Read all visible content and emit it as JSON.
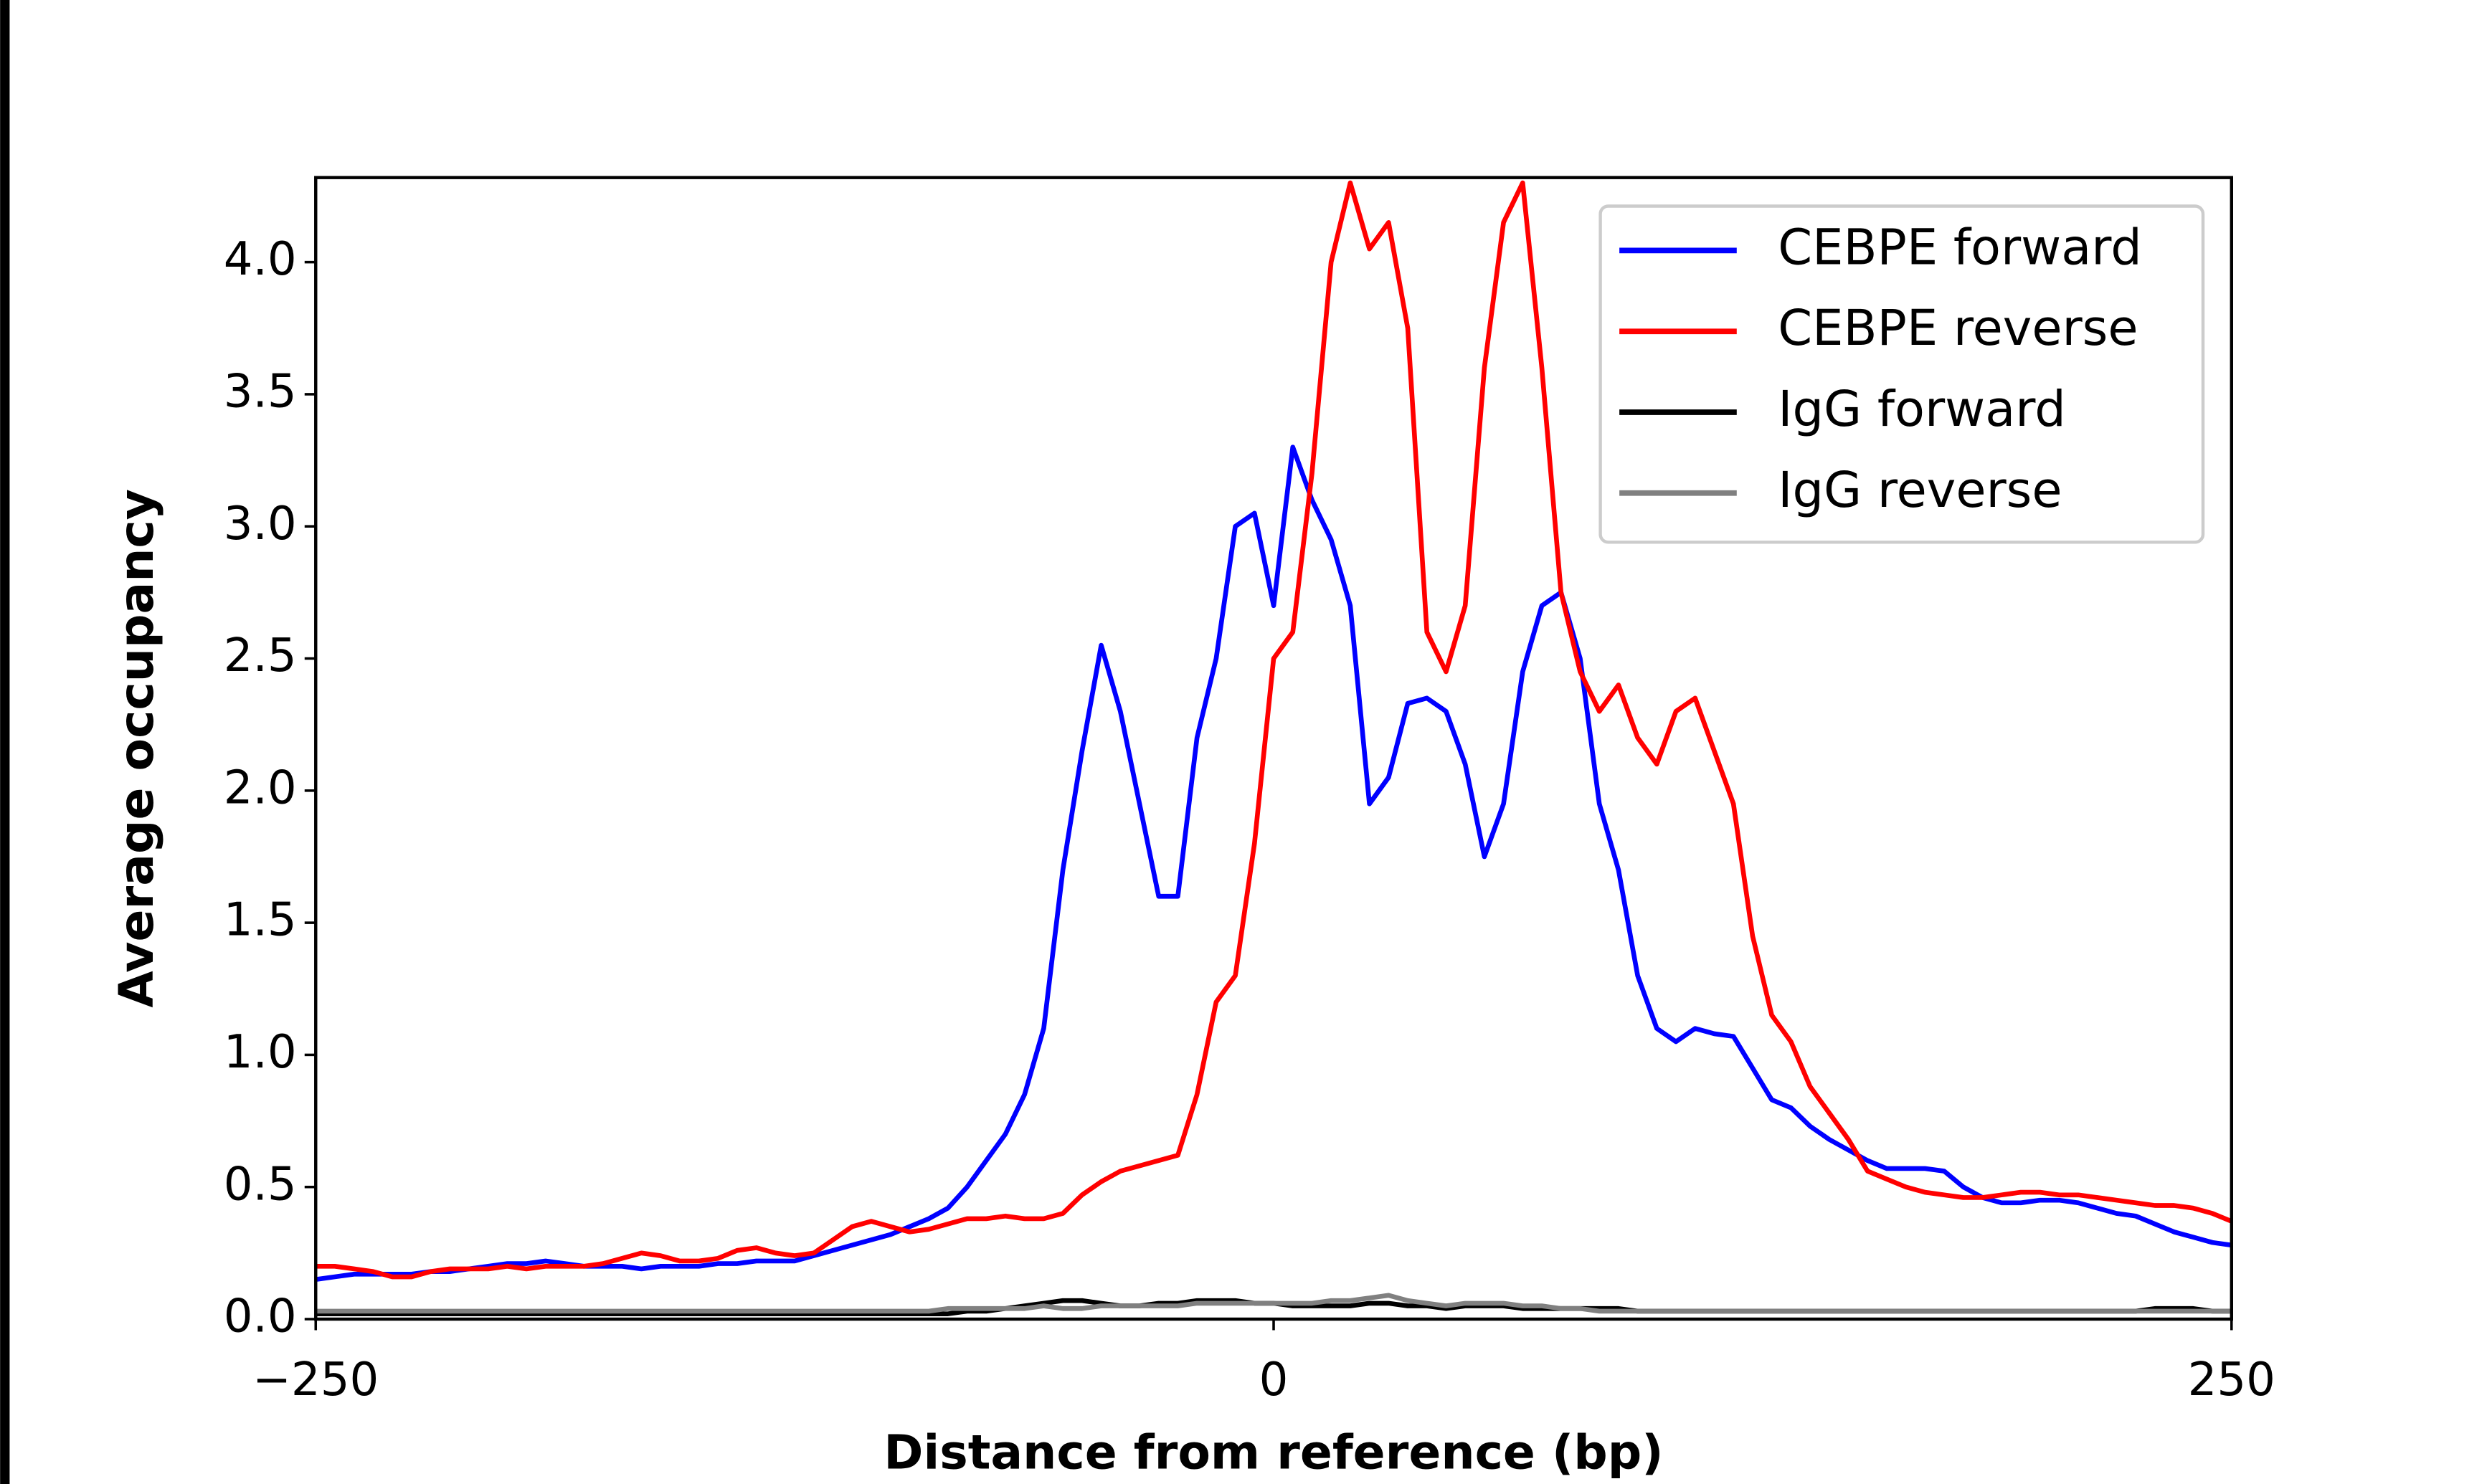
{
  "chart_data": {
    "type": "line",
    "x_label": "Distance from reference (bp)",
    "y_label": "Average occupancy",
    "xlim": [
      -250,
      250
    ],
    "ylim": [
      0,
      4.32
    ],
    "xticks": [
      {
        "value": -250,
        "label": "−250"
      },
      0,
      250
    ],
    "yticks": [
      {
        "value": 0,
        "label": "0.0"
      },
      0.5,
      {
        "value": 1,
        "label": "1.0"
      },
      1.5,
      {
        "value": 2,
        "label": "2.0"
      },
      2.5,
      {
        "value": 3,
        "label": "3.0"
      },
      3.5,
      {
        "value": 4,
        "label": "4.0"
      }
    ],
    "legend": "upper right",
    "x": [
      -250,
      -245,
      -240,
      -235,
      -230,
      -225,
      -220,
      -215,
      -210,
      -205,
      -200,
      -195,
      -190,
      -185,
      -180,
      -175,
      -170,
      -165,
      -160,
      -155,
      -150,
      -145,
      -140,
      -135,
      -130,
      -125,
      -120,
      -115,
      -110,
      -105,
      -100,
      -95,
      -90,
      -85,
      -80,
      -75,
      -70,
      -65,
      -60,
      -55,
      -50,
      -45,
      -40,
      -35,
      -30,
      -25,
      -20,
      -15,
      -10,
      -5,
      0,
      5,
      10,
      15,
      20,
      25,
      30,
      35,
      40,
      45,
      50,
      55,
      60,
      65,
      70,
      75,
      80,
      85,
      90,
      95,
      100,
      105,
      110,
      115,
      120,
      125,
      130,
      135,
      140,
      145,
      150,
      155,
      160,
      165,
      170,
      175,
      180,
      185,
      190,
      195,
      200,
      205,
      210,
      215,
      220,
      225,
      230,
      235,
      240,
      245,
      250
    ],
    "series": [
      {
        "name": "CEBPE forward",
        "color": "#0000ff",
        "values": [
          0.15,
          0.16,
          0.17,
          0.17,
          0.17,
          0.17,
          0.18,
          0.18,
          0.19,
          0.2,
          0.21,
          0.21,
          0.22,
          0.21,
          0.2,
          0.2,
          0.2,
          0.19,
          0.2,
          0.2,
          0.2,
          0.21,
          0.21,
          0.22,
          0.22,
          0.22,
          0.24,
          0.26,
          0.28,
          0.3,
          0.32,
          0.35,
          0.38,
          0.42,
          0.5,
          0.6,
          0.7,
          0.85,
          1.1,
          1.7,
          2.15,
          2.55,
          2.3,
          1.95,
          1.6,
          1.6,
          2.2,
          2.5,
          3.0,
          3.05,
          2.7,
          3.3,
          3.1,
          2.95,
          2.7,
          1.95,
          2.05,
          2.33,
          2.35,
          2.3,
          2.1,
          1.75,
          1.95,
          2.45,
          2.7,
          2.75,
          2.5,
          1.95,
          1.7,
          1.3,
          1.1,
          1.05,
          1.1,
          1.08,
          1.07,
          0.95,
          0.83,
          0.8,
          0.73,
          0.68,
          0.64,
          0.6,
          0.57,
          0.57,
          0.57,
          0.56,
          0.5,
          0.46,
          0.44,
          0.44,
          0.45,
          0.45,
          0.44,
          0.42,
          0.4,
          0.39,
          0.36,
          0.33,
          0.31,
          0.29,
          0.28
        ]
      },
      {
        "name": "CEBPE reverse",
        "color": "#ff0000",
        "values": [
          0.2,
          0.2,
          0.19,
          0.18,
          0.16,
          0.16,
          0.18,
          0.19,
          0.19,
          0.19,
          0.2,
          0.19,
          0.2,
          0.2,
          0.2,
          0.21,
          0.23,
          0.25,
          0.24,
          0.22,
          0.22,
          0.23,
          0.26,
          0.27,
          0.25,
          0.24,
          0.25,
          0.3,
          0.35,
          0.37,
          0.35,
          0.33,
          0.34,
          0.36,
          0.38,
          0.38,
          0.39,
          0.38,
          0.38,
          0.4,
          0.47,
          0.52,
          0.56,
          0.58,
          0.6,
          0.62,
          0.85,
          1.2,
          1.3,
          1.8,
          2.5,
          2.6,
          3.2,
          4.0,
          4.3,
          4.05,
          4.15,
          3.75,
          2.6,
          2.45,
          2.7,
          3.6,
          4.15,
          4.3,
          3.6,
          2.75,
          2.45,
          2.3,
          2.4,
          2.2,
          2.1,
          2.3,
          2.35,
          2.15,
          1.95,
          1.45,
          1.15,
          1.05,
          0.88,
          0.78,
          0.68,
          0.56,
          0.53,
          0.5,
          0.48,
          0.47,
          0.46,
          0.46,
          0.47,
          0.48,
          0.48,
          0.47,
          0.47,
          0.46,
          0.45,
          0.44,
          0.43,
          0.43,
          0.42,
          0.4,
          0.37
        ]
      },
      {
        "name": "IgG forward",
        "color": "#000000",
        "values": [
          0.02,
          0.02,
          0.02,
          0.02,
          0.02,
          0.02,
          0.02,
          0.02,
          0.02,
          0.02,
          0.02,
          0.02,
          0.02,
          0.02,
          0.02,
          0.02,
          0.02,
          0.02,
          0.02,
          0.02,
          0.02,
          0.02,
          0.02,
          0.02,
          0.02,
          0.02,
          0.02,
          0.02,
          0.02,
          0.02,
          0.02,
          0.02,
          0.02,
          0.02,
          0.03,
          0.03,
          0.04,
          0.05,
          0.06,
          0.07,
          0.07,
          0.06,
          0.05,
          0.05,
          0.06,
          0.06,
          0.07,
          0.07,
          0.07,
          0.06,
          0.06,
          0.05,
          0.05,
          0.05,
          0.05,
          0.06,
          0.06,
          0.05,
          0.05,
          0.04,
          0.05,
          0.05,
          0.05,
          0.04,
          0.04,
          0.04,
          0.04,
          0.04,
          0.04,
          0.03,
          0.03,
          0.03,
          0.03,
          0.03,
          0.03,
          0.03,
          0.03,
          0.03,
          0.03,
          0.03,
          0.03,
          0.03,
          0.03,
          0.03,
          0.03,
          0.03,
          0.03,
          0.03,
          0.03,
          0.03,
          0.03,
          0.03,
          0.03,
          0.03,
          0.03,
          0.03,
          0.04,
          0.04,
          0.04,
          0.03,
          0.03
        ]
      },
      {
        "name": "IgG reverse",
        "color": "#808080",
        "values": [
          0.03,
          0.03,
          0.03,
          0.03,
          0.03,
          0.03,
          0.03,
          0.03,
          0.03,
          0.03,
          0.03,
          0.03,
          0.03,
          0.03,
          0.03,
          0.03,
          0.03,
          0.03,
          0.03,
          0.03,
          0.03,
          0.03,
          0.03,
          0.03,
          0.03,
          0.03,
          0.03,
          0.03,
          0.03,
          0.03,
          0.03,
          0.03,
          0.03,
          0.04,
          0.04,
          0.04,
          0.04,
          0.04,
          0.05,
          0.04,
          0.04,
          0.05,
          0.05,
          0.05,
          0.05,
          0.05,
          0.06,
          0.06,
          0.06,
          0.06,
          0.06,
          0.06,
          0.06,
          0.07,
          0.07,
          0.08,
          0.09,
          0.07,
          0.06,
          0.05,
          0.06,
          0.06,
          0.06,
          0.05,
          0.05,
          0.04,
          0.04,
          0.03,
          0.03,
          0.03,
          0.03,
          0.03,
          0.03,
          0.03,
          0.03,
          0.03,
          0.03,
          0.03,
          0.03,
          0.03,
          0.03,
          0.03,
          0.03,
          0.03,
          0.03,
          0.03,
          0.03,
          0.03,
          0.03,
          0.03,
          0.03,
          0.03,
          0.03,
          0.03,
          0.03,
          0.03,
          0.03,
          0.03,
          0.03,
          0.03,
          0.03
        ]
      }
    ]
  }
}
